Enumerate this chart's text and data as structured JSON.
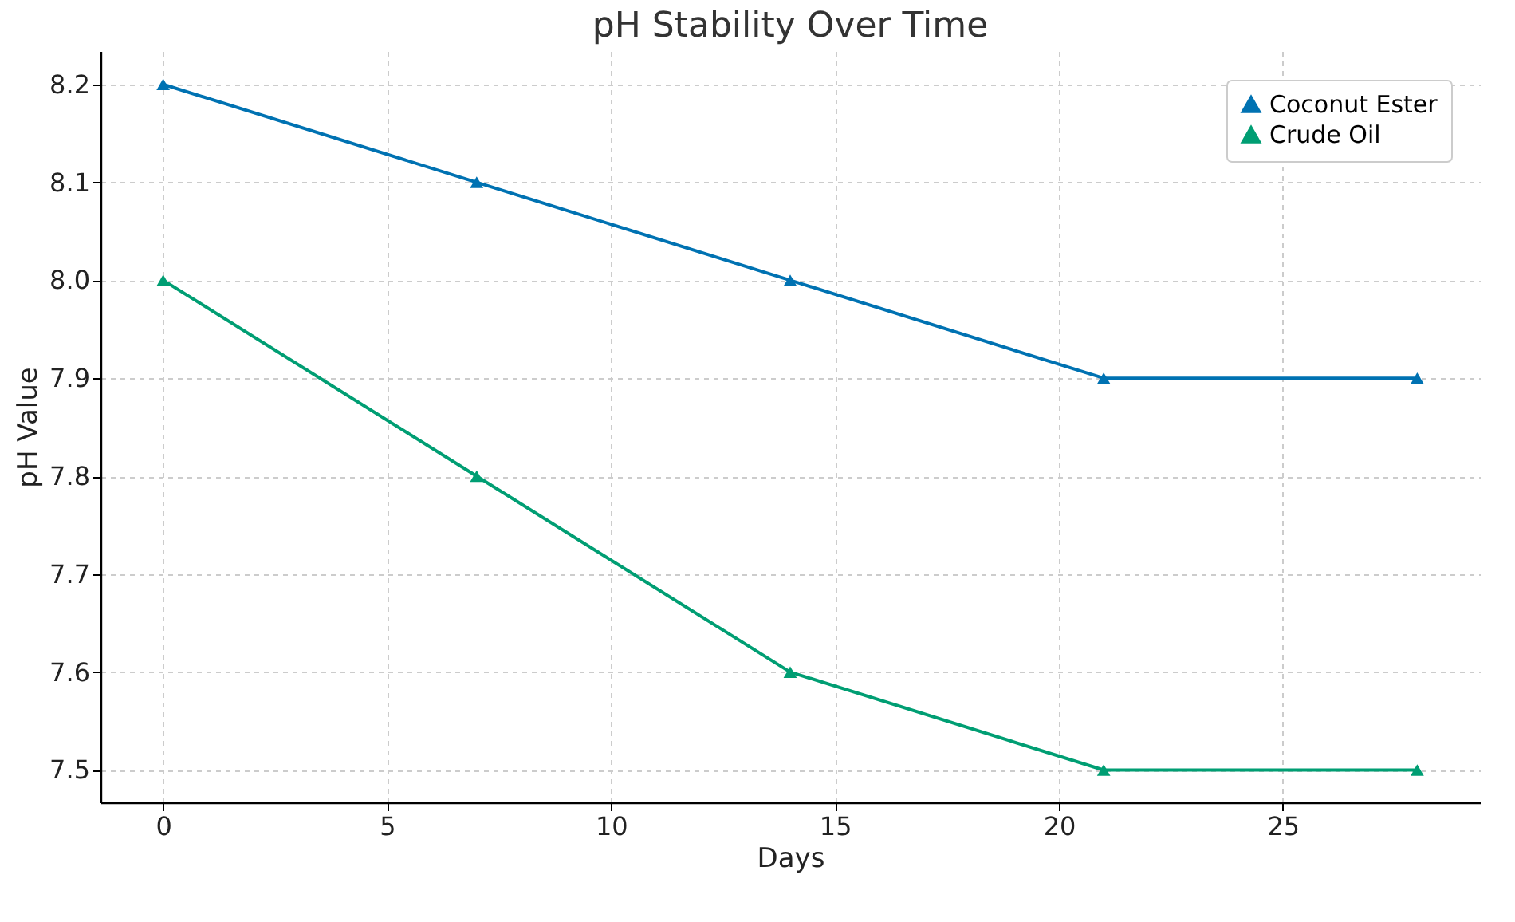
{
  "chart_data": {
    "type": "line",
    "title": "pH Stability Over Time",
    "xlabel": "Days",
    "ylabel": "pH Value",
    "x": [
      0,
      7,
      14,
      21,
      28
    ],
    "series": [
      {
        "name": "Coconut Ester",
        "color": "#0072b2",
        "values": [
          8.2,
          8.1,
          8.0,
          7.9,
          7.9
        ]
      },
      {
        "name": "Crude Oil",
        "color": "#009e73",
        "values": [
          8.0,
          7.8,
          7.6,
          7.5,
          7.5
        ]
      }
    ],
    "xlim": [
      -1.4,
      29.4
    ],
    "xticks": [
      0,
      5,
      10,
      15,
      20,
      25
    ],
    "ylim": [
      7.467,
      8.234
    ],
    "yticks": [
      7.5,
      7.6,
      7.7,
      7.8,
      7.9,
      {
        "value": 8,
        "label": "8.0"
      },
      8.1,
      8.2
    ],
    "grid": true,
    "legend": "top right",
    "marker": "triangle",
    "line_style": "solid"
  }
}
